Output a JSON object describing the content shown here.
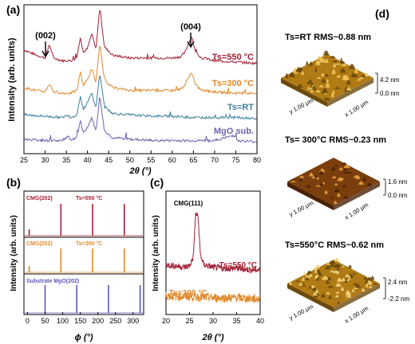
{
  "chart_data": [
    {
      "panel": "(a)",
      "type": "line",
      "xlabel": "2θ (°)",
      "ylabel": "Intensity (arb. units)",
      "xlim": [
        25,
        80
      ],
      "xticks": [
        "25",
        "30",
        "35",
        "40",
        "45",
        "50",
        "55",
        "60",
        "65",
        "70",
        "75",
        "80"
      ],
      "annotations": [
        "(002)",
        "(004)"
      ],
      "series": [
        {
          "name": "Ts=550 °C",
          "color": "#a32035",
          "x": [
            25,
            28,
            30,
            31,
            32,
            34,
            36,
            37.5,
            38.3,
            39,
            40,
            41,
            42,
            42.9,
            44,
            46,
            50,
            55,
            60,
            62,
            63,
            64,
            64.6,
            65.5,
            67,
            70,
            75,
            80
          ],
          "y": [
            72,
            68,
            66,
            76,
            66,
            64,
            64,
            66,
            82,
            70,
            73,
            84,
            72,
            104,
            74,
            68,
            66,
            66,
            66,
            67,
            70,
            78,
            82,
            70,
            66,
            64,
            63,
            62
          ]
        },
        {
          "name": "Ts=300 °C",
          "color": "#e0892b",
          "x": [
            25,
            28,
            30,
            31,
            32,
            34,
            36,
            37.5,
            38.3,
            39,
            40,
            41,
            42,
            42.9,
            44,
            46,
            50,
            55,
            60,
            62,
            63,
            64,
            64.6,
            65.5,
            67,
            70,
            75,
            80
          ],
          "y": [
            44,
            42,
            41,
            47,
            41,
            40,
            40,
            42,
            56,
            46,
            50,
            58,
            48,
            76,
            50,
            44,
            42,
            42,
            42,
            43,
            46,
            53,
            55,
            46,
            42,
            41,
            40,
            40
          ]
        },
        {
          "name": "Ts=RT",
          "color": "#3d7f9f",
          "x": [
            25,
            30,
            34,
            35.5,
            36,
            37.5,
            38.3,
            39,
            40,
            41,
            42,
            42.9,
            44,
            46,
            50,
            55,
            60,
            65,
            70,
            75,
            80
          ],
          "y": [
            24,
            23,
            22,
            24,
            22,
            24,
            38,
            28,
            33,
            40,
            29,
            55,
            30,
            25,
            24,
            23,
            23,
            22,
            22,
            22,
            21
          ]
        },
        {
          "name": "MgO sub.",
          "color": "#6f63b0",
          "x": [
            25,
            30,
            34,
            35.5,
            36,
            37.5,
            38.3,
            39,
            40,
            41,
            42,
            42.9,
            44,
            46,
            50,
            55,
            60,
            65,
            70,
            74.8,
            75.2,
            80
          ],
          "y": [
            6,
            5,
            5,
            8,
            5,
            7,
            20,
            10,
            15,
            22,
            12,
            38,
            12,
            7,
            6,
            5,
            5,
            5,
            5,
            9,
            5,
            4
          ]
        }
      ],
      "series_labels": [
        "Ts=550 °C",
        "Ts=300 °C",
        "Ts=RT",
        "MgO sub."
      ]
    },
    {
      "panel": "(b)",
      "type": "line",
      "xlabel": "ϕ (°)",
      "ylabel": "Intensity (arb. units)",
      "xlim": [
        -10,
        330
      ],
      "xticks": [
        "0",
        "50",
        "100",
        "150",
        "200",
        "250",
        "300"
      ],
      "series": [
        {
          "name": "CMG(202) Ts=550 °C",
          "color": "#a32035",
          "x": [
            95,
            185,
            275,
            5
          ],
          "y": [
            1,
            1,
            1,
            0
          ]
        },
        {
          "name": "CMG(202) Ts=300 °C",
          "color": "#e0892b",
          "x": [
            95,
            185,
            275,
            5
          ],
          "y": [
            1,
            1,
            1,
            0
          ]
        },
        {
          "name": "Substrate MgO(202)",
          "color": "#5c58b8",
          "x": [
            50,
            140,
            230,
            320
          ],
          "y": [
            1,
            1,
            1,
            1
          ]
        }
      ],
      "series_labels": [
        "CMG(202)",
        "Ts=550 °C",
        "CMG(202)",
        "Ts=300 °C",
        "Substrate MgO(202)"
      ]
    },
    {
      "panel": "(c)",
      "type": "line",
      "xlabel": "2θ (°)",
      "ylabel": "Intensity (arb. units)",
      "xlim": [
        20,
        40
      ],
      "xticks": [
        "20",
        "25",
        "30",
        "35",
        "40"
      ],
      "annotations": [
        "CMG(111)"
      ],
      "series": [
        {
          "name": "Ts=550 °C",
          "color": "#a32035",
          "x": [
            20,
            22,
            24,
            25,
            25.8,
            26.3,
            26.8,
            27.3,
            28,
            30,
            32,
            35,
            38,
            40
          ],
          "y": [
            36,
            35,
            34,
            35,
            42,
            76,
            74,
            44,
            36,
            34,
            33,
            33,
            32,
            32
          ]
        },
        {
          "name": "Ts=300 °C",
          "color": "#e0892b",
          "x": [
            20,
            22,
            25,
            30,
            35,
            40
          ],
          "y": [
            12,
            11,
            11,
            10,
            10,
            9
          ]
        }
      ],
      "series_labels": [
        "Ts=550 °C",
        "Ts=300 °C"
      ]
    }
  ],
  "figure": {
    "panels": {
      "a": "(a)",
      "b": "(b)",
      "c": "(c)",
      "d": "(d)"
    },
    "a_labels": {
      "l550": "Ts=550 °C",
      "l300": "Ts=300 °C",
      "lrt": "Ts=RT",
      "lmgo": "MgO sub.",
      "p002": "(002)",
      "p004": "(004)",
      "xlabel": "2θ (°)",
      "ylabel": "Intensity (arb. units)"
    },
    "b_labels": {
      "cmg1": "CMG(202)",
      "t1": "Ts=550 °C",
      "cmg2": "CMG(202)",
      "t2": "Ts=300 °C",
      "sub": "Substrate MgO(202)",
      "xlabel": "ϕ (°)",
      "ylabel": "Intensity (arb. units)"
    },
    "c_labels": {
      "peak": "CMG(111)",
      "l550": "Ts=550 °C",
      "l300": "Ts=300 °C",
      "xlabel": "2θ (°)",
      "ylabel": "Intensity (arb. units)"
    },
    "afm": [
      {
        "title": "Ts=RT RMS~0.88 nm",
        "z_top": "4.2 nm",
        "z_bottom": "0.0 nm",
        "ax_y": "y 1.00 μm",
        "ax_x": "x 1.00 μm"
      },
      {
        "title": "Ts= 300°C RMS~0.23 nm",
        "z_top": "1.6 nm",
        "z_bottom": "0.0 nm",
        "ax_y": "y 1.00 μm",
        "ax_x": "x 1.00 μm"
      },
      {
        "title": "Ts=550°C RMS~0.62 nm",
        "z_top": "2.4 nm",
        "z_bottom": "-2.2 nm",
        "ax_y": "y 1.00 μm",
        "ax_x": "x 1.00 μm"
      }
    ],
    "colors": {
      "c550": "#a32035",
      "c300": "#e0892b",
      "crt": "#3d7f9f",
      "cmgo": "#6f63b0",
      "csub": "#5c58b8"
    }
  }
}
